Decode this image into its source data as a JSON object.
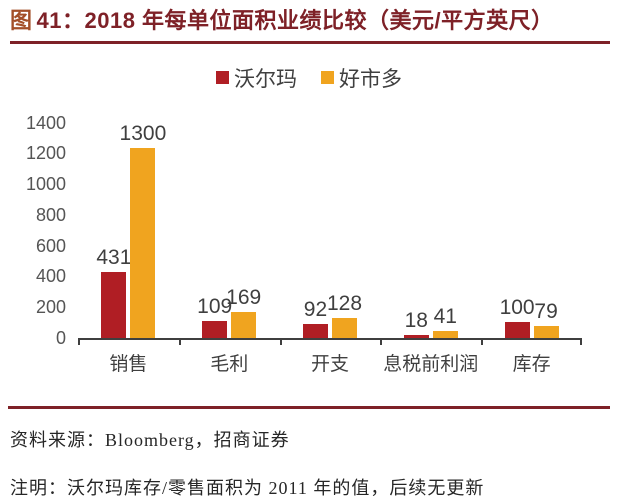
{
  "header": {
    "figure_char": "图",
    "title_rest": "41：2018 年每单位面积业绩比较（美元/平方英尺）"
  },
  "chart_data": {
    "type": "bar",
    "title": "2018 年每单位面积业绩比较（美元/平方英尺）",
    "categories": [
      "销售",
      "毛利",
      "开支",
      "息税前利润",
      "库存"
    ],
    "series": [
      {
        "name": "沃尔玛",
        "color": "#B01E24",
        "values": [
          431,
          109,
          92,
          18,
          100
        ]
      },
      {
        "name": "好市多",
        "color": "#F0A41F",
        "values": [
          1300,
          169,
          128,
          41,
          79
        ]
      }
    ],
    "ylim": [
      0,
      1400
    ],
    "ytick_step": 200,
    "grid": false,
    "legend_position": "top-center",
    "value_labels": true
  },
  "footer": {
    "source": "资料来源：Bloomberg，招商证券",
    "note": "注明：沃尔玛库存/零售面积为 2011 年的值，后续无更新"
  },
  "colors": {
    "accent_maroon": "#7E2127",
    "figure_label_orange": "#A34F28",
    "walmart_red": "#B01E24",
    "costco_orange": "#F0A41F",
    "axis_gray": "#3F3F3F"
  }
}
